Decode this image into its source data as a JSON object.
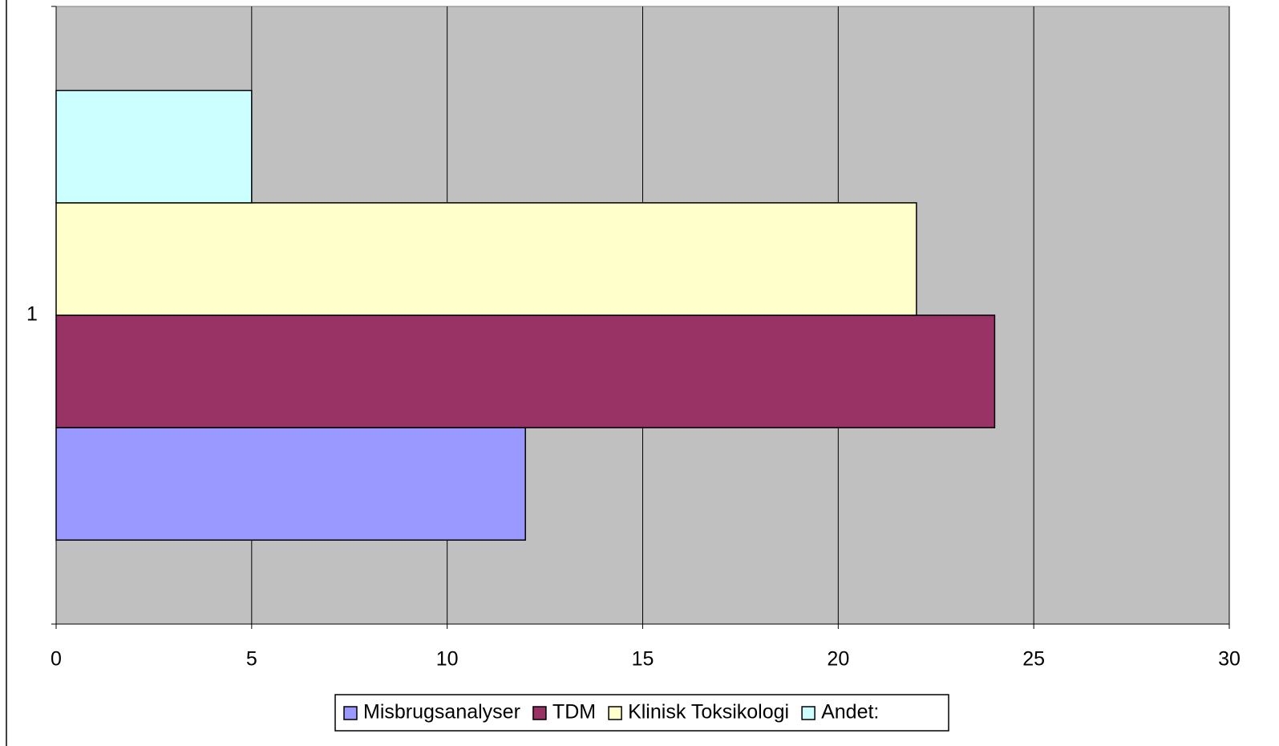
{
  "chart_data": {
    "type": "bar",
    "horizontal": true,
    "categories": [
      "1"
    ],
    "series": [
      {
        "name": "Misbrugsanalyser",
        "color": "#9999ff",
        "values": [
          12
        ]
      },
      {
        "name": "TDM",
        "color": "#993366",
        "values": [
          24
        ]
      },
      {
        "name": "Klinisk Toksikologi",
        "color": "#ffffcc",
        "values": [
          22
        ]
      },
      {
        "name": "Andet:",
        "color": "#ccffff",
        "values": [
          5
        ]
      }
    ],
    "xlim": [
      0,
      30
    ],
    "xticks": [
      0,
      5,
      10,
      15,
      20,
      25,
      30
    ],
    "grid": true,
    "plot_background": "#c0c0c0",
    "legend": "bottom"
  }
}
